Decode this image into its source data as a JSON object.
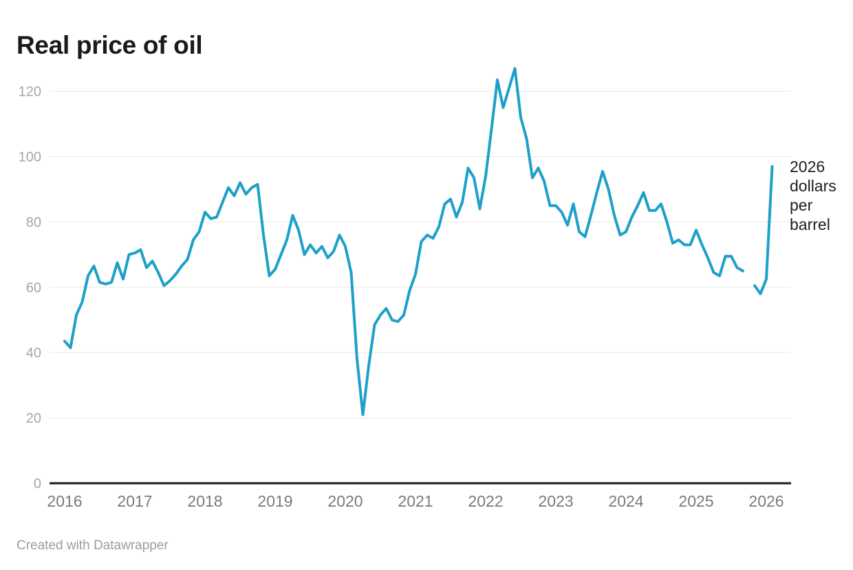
{
  "title": "Real price of oil",
  "annotation": {
    "text": "2026 dollars per barrel"
  },
  "footer": {
    "credit": "Created with Datawrapper"
  },
  "colors": {
    "line": "#1fa0c8",
    "grid": "#e8e8e8",
    "axis": "#1a1a1a",
    "y_tick_label": "#a6a6a6",
    "x_tick_label": "#7a7a7a",
    "title": "#1a1a1a",
    "annotation": "#1d1d1d",
    "credit": "#9b9b9b",
    "background": "#ffffff"
  },
  "chart_data": {
    "type": "line",
    "title": "Real price of oil",
    "unit_annotation": "2026 dollars per barrel",
    "frequency": "monthly",
    "x_start": "2016-01",
    "x_end": "2026-02",
    "x_tick_labels": [
      "2016",
      "2017",
      "2018",
      "2019",
      "2020",
      "2021",
      "2022",
      "2023",
      "2024",
      "2025",
      "2026"
    ],
    "y_ticks": [
      0,
      20,
      40,
      60,
      80,
      100,
      120
    ],
    "ylim": [
      0,
      130
    ],
    "grid": "horizontal",
    "legend": "none",
    "missing_months": [
      "2025-10"
    ],
    "series": [
      {
        "name": "Real price of oil (2026 dollars per barrel)",
        "values": [
          43.5,
          41.5,
          51.5,
          55.5,
          63.5,
          66.5,
          61.5,
          61,
          61.5,
          67.5,
          62.5,
          70,
          70.5,
          71.5,
          66,
          68,
          64.5,
          60.5,
          62,
          64,
          66.5,
          68.5,
          74.5,
          77,
          83,
          81,
          81.5,
          86,
          90.5,
          88,
          92,
          88.5,
          90.5,
          91.5,
          76,
          63.5,
          65.5,
          70,
          74.5,
          82,
          77.5,
          70,
          73,
          70.5,
          72.5,
          69,
          71,
          76,
          72.5,
          64.5,
          38,
          21,
          36,
          48.5,
          51.5,
          53.5,
          50,
          49.5,
          51.5,
          59,
          64,
          74,
          76,
          75,
          78.5,
          85.5,
          87,
          81.5,
          86,
          96.5,
          93.5,
          84,
          94,
          108.5,
          123.5,
          115,
          121,
          127,
          112,
          105.5,
          93.5,
          96.5,
          92.5,
          85,
          85,
          83,
          79,
          85.5,
          77,
          75.5,
          82,
          89,
          95.5,
          90,
          82,
          76,
          77,
          81.5,
          85,
          89,
          83.5,
          83.5,
          85.5,
          80,
          73.5,
          74.5,
          73,
          73,
          77.5,
          73,
          69,
          64.5,
          63.5,
          69.5,
          69.5,
          66,
          65,
          null,
          60.5,
          58,
          62.5,
          97
        ]
      }
    ]
  }
}
